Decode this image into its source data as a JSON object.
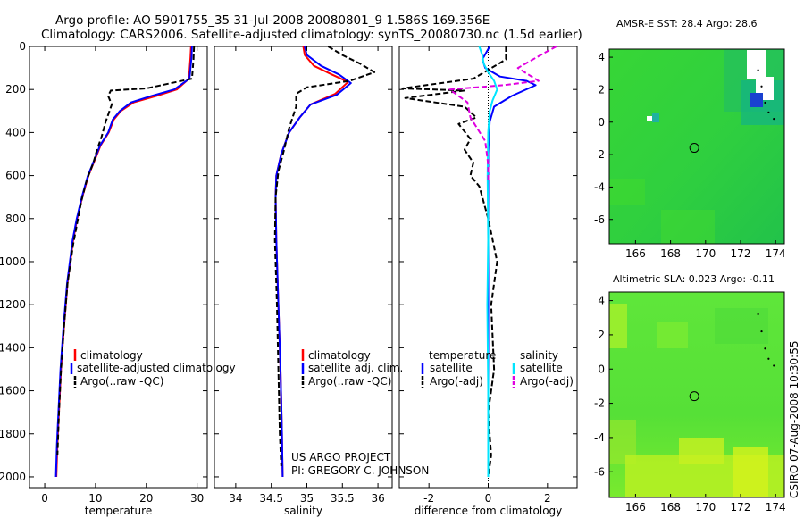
{
  "title": {
    "line1": "Argo profile: AO 5901755_35 31-Jul-2008 20080801_9 1.586S 169.356E",
    "line2": "Climatology: CARS2006. Satellite-adjusted climatology: synTS_20080730.nc (1.5d earlier)"
  },
  "credit": {
    "line1": "US ARGO PROJECT",
    "line2": "PI: GREGORY C. JOHNSON"
  },
  "side_label": "CSIRO 07-Aug-2008 10:30:55",
  "colors": {
    "climatology": "#ff0000",
    "satellite": "#0000ff",
    "argo": "#000000",
    "sal_satellite": "#00e5ff",
    "sal_argo": "#e000e0",
    "sst_field": "#22cc33",
    "sla_field": "#55ee33"
  },
  "chart_data": [
    {
      "id": "temperature",
      "type": "line",
      "xlabel": "temperature",
      "ylabel": "",
      "xlim": [
        -3,
        32
      ],
      "ylim": [
        2050,
        0
      ],
      "xticks": [
        0,
        10,
        20,
        30
      ],
      "yticks": [
        0,
        200,
        400,
        600,
        800,
        1000,
        1200,
        1400,
        1600,
        1800,
        2000
      ],
      "legend": [
        "climatology",
        "satellite-adjusted climatology",
        "Argo(..raw -QC)"
      ],
      "series": [
        {
          "name": "climatology",
          "style": "solid",
          "color": "#ff0000",
          "x": [
            28.8,
            28.7,
            28.4,
            26.0,
            22.0,
            17.5,
            15.0,
            13.6,
            12.6,
            11.0,
            10.0,
            8.6,
            7.4,
            6.4,
            5.6,
            4.5,
            3.8,
            3.2,
            2.8,
            2.5,
            2.3
          ],
          "y": [
            0,
            50,
            150,
            200,
            230,
            260,
            300,
            340,
            400,
            460,
            520,
            600,
            700,
            800,
            900,
            1100,
            1300,
            1500,
            1700,
            1850,
            2000
          ]
        },
        {
          "name": "satellite-adjusted climatology",
          "style": "solid",
          "color": "#0000ff",
          "x": [
            29.0,
            28.9,
            28.5,
            25.5,
            21.0,
            17.0,
            14.8,
            13.4,
            12.5,
            10.9,
            9.9,
            8.5,
            7.3,
            6.3,
            5.5,
            4.4,
            3.7,
            3.1,
            2.7,
            2.4,
            2.2
          ],
          "y": [
            0,
            50,
            150,
            200,
            230,
            260,
            300,
            340,
            400,
            460,
            520,
            600,
            700,
            800,
            900,
            1100,
            1300,
            1500,
            1700,
            1850,
            2000
          ]
        },
        {
          "name": "Argo(..raw -QC)",
          "style": "dash",
          "color": "#000000",
          "x": [
            29.4,
            29.3,
            29.0,
            20.0,
            13.0,
            12.5,
            13.2,
            12.0,
            11.2,
            10.3,
            9.6,
            8.3,
            7.2,
            6.4,
            5.6,
            4.5,
            3.8,
            3.2,
            2.8,
            2.5
          ],
          "y": [
            0,
            60,
            150,
            195,
            205,
            230,
            270,
            350,
            420,
            480,
            540,
            620,
            720,
            820,
            920,
            1100,
            1300,
            1500,
            1700,
            1900
          ]
        }
      ]
    },
    {
      "id": "salinity",
      "type": "line",
      "xlabel": "salinity",
      "ylabel": "",
      "xlim": [
        33.7,
        36.2
      ],
      "ylim": [
        2050,
        0
      ],
      "xticks": [
        34,
        34.5,
        35,
        35.5,
        36
      ],
      "yticks": [
        0,
        200,
        400,
        600,
        800,
        1000,
        1200,
        1400,
        1600,
        1800,
        2000
      ],
      "legend": [
        "climatology",
        "satellite adj. clim.",
        "Argo(..raw -QC)"
      ],
      "series": [
        {
          "name": "climatology",
          "style": "solid",
          "color": "#ff0000",
          "x": [
            34.95,
            34.97,
            35.1,
            35.35,
            35.58,
            35.4,
            35.05,
            34.9,
            34.75,
            34.64,
            34.57,
            34.56,
            34.57,
            34.6,
            34.63,
            34.65,
            34.66
          ],
          "y": [
            0,
            40,
            90,
            130,
            165,
            220,
            270,
            330,
            400,
            500,
            600,
            700,
            900,
            1200,
            1500,
            1800,
            2000
          ]
        },
        {
          "name": "satellite adj. clim.",
          "style": "solid",
          "color": "#0000ff",
          "x": [
            34.97,
            35.0,
            35.2,
            35.45,
            35.62,
            35.42,
            35.05,
            34.9,
            34.75,
            34.64,
            34.57,
            34.56,
            34.57,
            34.6,
            34.63,
            34.65,
            34.66
          ],
          "y": [
            0,
            40,
            90,
            130,
            170,
            225,
            270,
            330,
            400,
            500,
            600,
            700,
            900,
            1200,
            1500,
            1800,
            2000
          ]
        },
        {
          "name": "Argo(..raw -QC)",
          "style": "dash",
          "color": "#000000",
          "x": [
            35.3,
            35.5,
            35.75,
            35.95,
            35.6,
            35.0,
            34.85,
            34.85,
            34.75,
            34.68,
            34.6,
            34.56,
            34.55,
            34.58,
            34.6,
            34.62,
            34.64
          ],
          "y": [
            0,
            40,
            80,
            120,
            160,
            190,
            220,
            280,
            380,
            480,
            580,
            700,
            900,
            1200,
            1500,
            1800,
            1950
          ]
        }
      ]
    },
    {
      "id": "difference",
      "type": "line",
      "xlabel": "difference from climatology",
      "ylabel": "",
      "xlim": [
        -3,
        3
      ],
      "ylim": [
        2050,
        0
      ],
      "xticks": [
        -2,
        0,
        2
      ],
      "yticks": [
        0,
        200,
        400,
        600,
        800,
        1000,
        1200,
        1400,
        1600,
        1800,
        2000
      ],
      "legend_title": [
        "temperature",
        "salinity"
      ],
      "legend": [
        "satellite",
        "Argo(-adj)",
        "satellite",
        "Argo(-adj)"
      ],
      "series": [
        {
          "name": "temperature satellite",
          "style": "solid",
          "color": "#0000ff",
          "x": [
            0.05,
            -0.2,
            -0.1,
            0.4,
            1.3,
            1.6,
            0.8,
            0.2,
            0.05,
            0,
            0,
            0,
            0,
            0
          ],
          "y": [
            0,
            60,
            100,
            140,
            160,
            180,
            230,
            280,
            350,
            500,
            800,
            1200,
            1600,
            2000
          ]
        },
        {
          "name": "temperature Argo(-adj)",
          "style": "dash",
          "color": "#000000",
          "x": [
            0.6,
            0.6,
            -0.5,
            -2.9,
            -0.8,
            -2.8,
            -0.8,
            -0.4,
            -1.0,
            -0.6,
            -0.8,
            -0.5,
            -0.6,
            -0.3,
            -0.2,
            0,
            0.3,
            0.1,
            0.2,
            0,
            0.1,
            0
          ],
          "y": [
            0,
            60,
            150,
            195,
            205,
            240,
            280,
            330,
            360,
            430,
            480,
            540,
            600,
            650,
            700,
            800,
            1000,
            1200,
            1500,
            1700,
            1900,
            2000
          ]
        },
        {
          "name": "salinity satellite",
          "style": "solid",
          "color": "#00e5ff",
          "x": [
            -0.3,
            -0.2,
            -0.15,
            0,
            0.2,
            0.3,
            0.15,
            0.05,
            0,
            -0.02,
            0,
            -0.03,
            0,
            0
          ],
          "y": [
            0,
            40,
            80,
            120,
            160,
            200,
            250,
            300,
            400,
            600,
            900,
            1200,
            1600,
            2000
          ]
        },
        {
          "name": "salinity Argo(-adj)",
          "style": "dash",
          "color": "#e000e0",
          "x": [
            2.3,
            1.9,
            1.0,
            1.7,
            0.5,
            -1.3,
            -0.7,
            -0.6,
            -0.1,
            0,
            0
          ],
          "y": [
            0,
            30,
            100,
            160,
            180,
            200,
            260,
            330,
            440,
            550,
            620
          ]
        }
      ]
    },
    {
      "id": "sst_map",
      "type": "heatmap",
      "title": "AMSR-E SST: 28.4 Argo: 28.6",
      "xlim": [
        164.5,
        174.5
      ],
      "ylim": [
        -7.5,
        4.5
      ],
      "xticks": [
        166,
        168,
        170,
        172,
        174
      ],
      "yticks": [
        4,
        2,
        0,
        -2,
        -4,
        -6
      ],
      "profile_location": {
        "lon": 169.356,
        "lat": -1.586
      }
    },
    {
      "id": "sla_map",
      "type": "heatmap",
      "title": "Altimetric SLA: 0.023 Argo: -0.11",
      "xlim": [
        164.5,
        174.5
      ],
      "ylim": [
        -7.5,
        4.5
      ],
      "xticks": [
        166,
        168,
        170,
        172,
        174
      ],
      "yticks": [
        4,
        2,
        0,
        -2,
        -4,
        -6
      ],
      "profile_location": {
        "lon": 169.356,
        "lat": -1.586
      }
    }
  ]
}
